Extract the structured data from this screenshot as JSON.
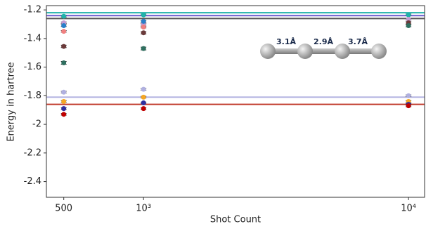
{
  "chart_data": {
    "type": "scatter",
    "xlabel": "Shot Count",
    "ylabel": "Energy in hartree",
    "xscale": "log",
    "xlim": [
      430,
      11500
    ],
    "ylim": [
      -2.51,
      -1.17
    ],
    "xticks": [
      500,
      {
        "value": 1000,
        "label": "10³"
      },
      {
        "value": 10000,
        "label": "10⁴"
      }
    ],
    "yticks": [
      -1.2,
      -1.4,
      -1.6,
      -1.8,
      -2.0,
      -2.2,
      -2.4
    ],
    "x": [
      500,
      1000,
      10000
    ],
    "series": [
      {
        "color": "#20b2aa",
        "values": [
          -1.244,
          -1.235,
          -1.235
        ],
        "errors": [
          0.006,
          0.006,
          0.006
        ]
      },
      {
        "color": "#c39bd3",
        "values": [
          -1.29,
          -1.3,
          -1.265
        ],
        "errors": [
          0.006,
          0.006,
          0.006
        ]
      },
      {
        "color": "#2a7fc9",
        "values": [
          -1.31,
          -1.28,
          null
        ],
        "errors": [
          0.006,
          0.006,
          null
        ]
      },
      {
        "color": "#f08080",
        "values": [
          -1.35,
          -1.32,
          null
        ],
        "errors": [
          0.006,
          0.006,
          null
        ]
      },
      {
        "color": "#6b3a3a",
        "values": [
          -1.455,
          -1.36,
          -1.29
        ],
        "errors": [
          0.008,
          0.008,
          0.008
        ]
      },
      {
        "color": "#2f6f5f",
        "values": [
          -1.57,
          -1.47,
          -1.31
        ],
        "errors": [
          0.01,
          0.01,
          0.008
        ]
      },
      {
        "color": "#b0b0e0",
        "values": [
          -1.775,
          -1.755,
          -1.8
        ],
        "errors": [
          0.006,
          0.006,
          0.006
        ]
      },
      {
        "color": "#f5a623",
        "values": [
          -1.84,
          -1.81,
          -1.84
        ],
        "errors": [
          0.006,
          0.006,
          0.006
        ]
      },
      {
        "color": "#2e2ea0",
        "values": [
          -1.89,
          -1.85,
          -1.86
        ],
        "errors": [
          0.006,
          0.006,
          0.006
        ]
      },
      {
        "color": "#c00000",
        "values": [
          -1.93,
          -1.89,
          -1.87
        ],
        "errors": [
          0.006,
          0.006,
          0.006
        ]
      }
    ],
    "hlines": [
      {
        "value": -1.22,
        "color": "#20b2aa"
      },
      {
        "value": -1.24,
        "color": "#6a5acd"
      },
      {
        "value": -1.26,
        "color": "#555555"
      },
      {
        "value": -1.81,
        "color": "#b0b0e0"
      },
      {
        "value": -1.86,
        "color": "#c0392b"
      }
    ],
    "annotations": [
      "3.1Å",
      "2.9Å",
      "3.7Å"
    ]
  }
}
